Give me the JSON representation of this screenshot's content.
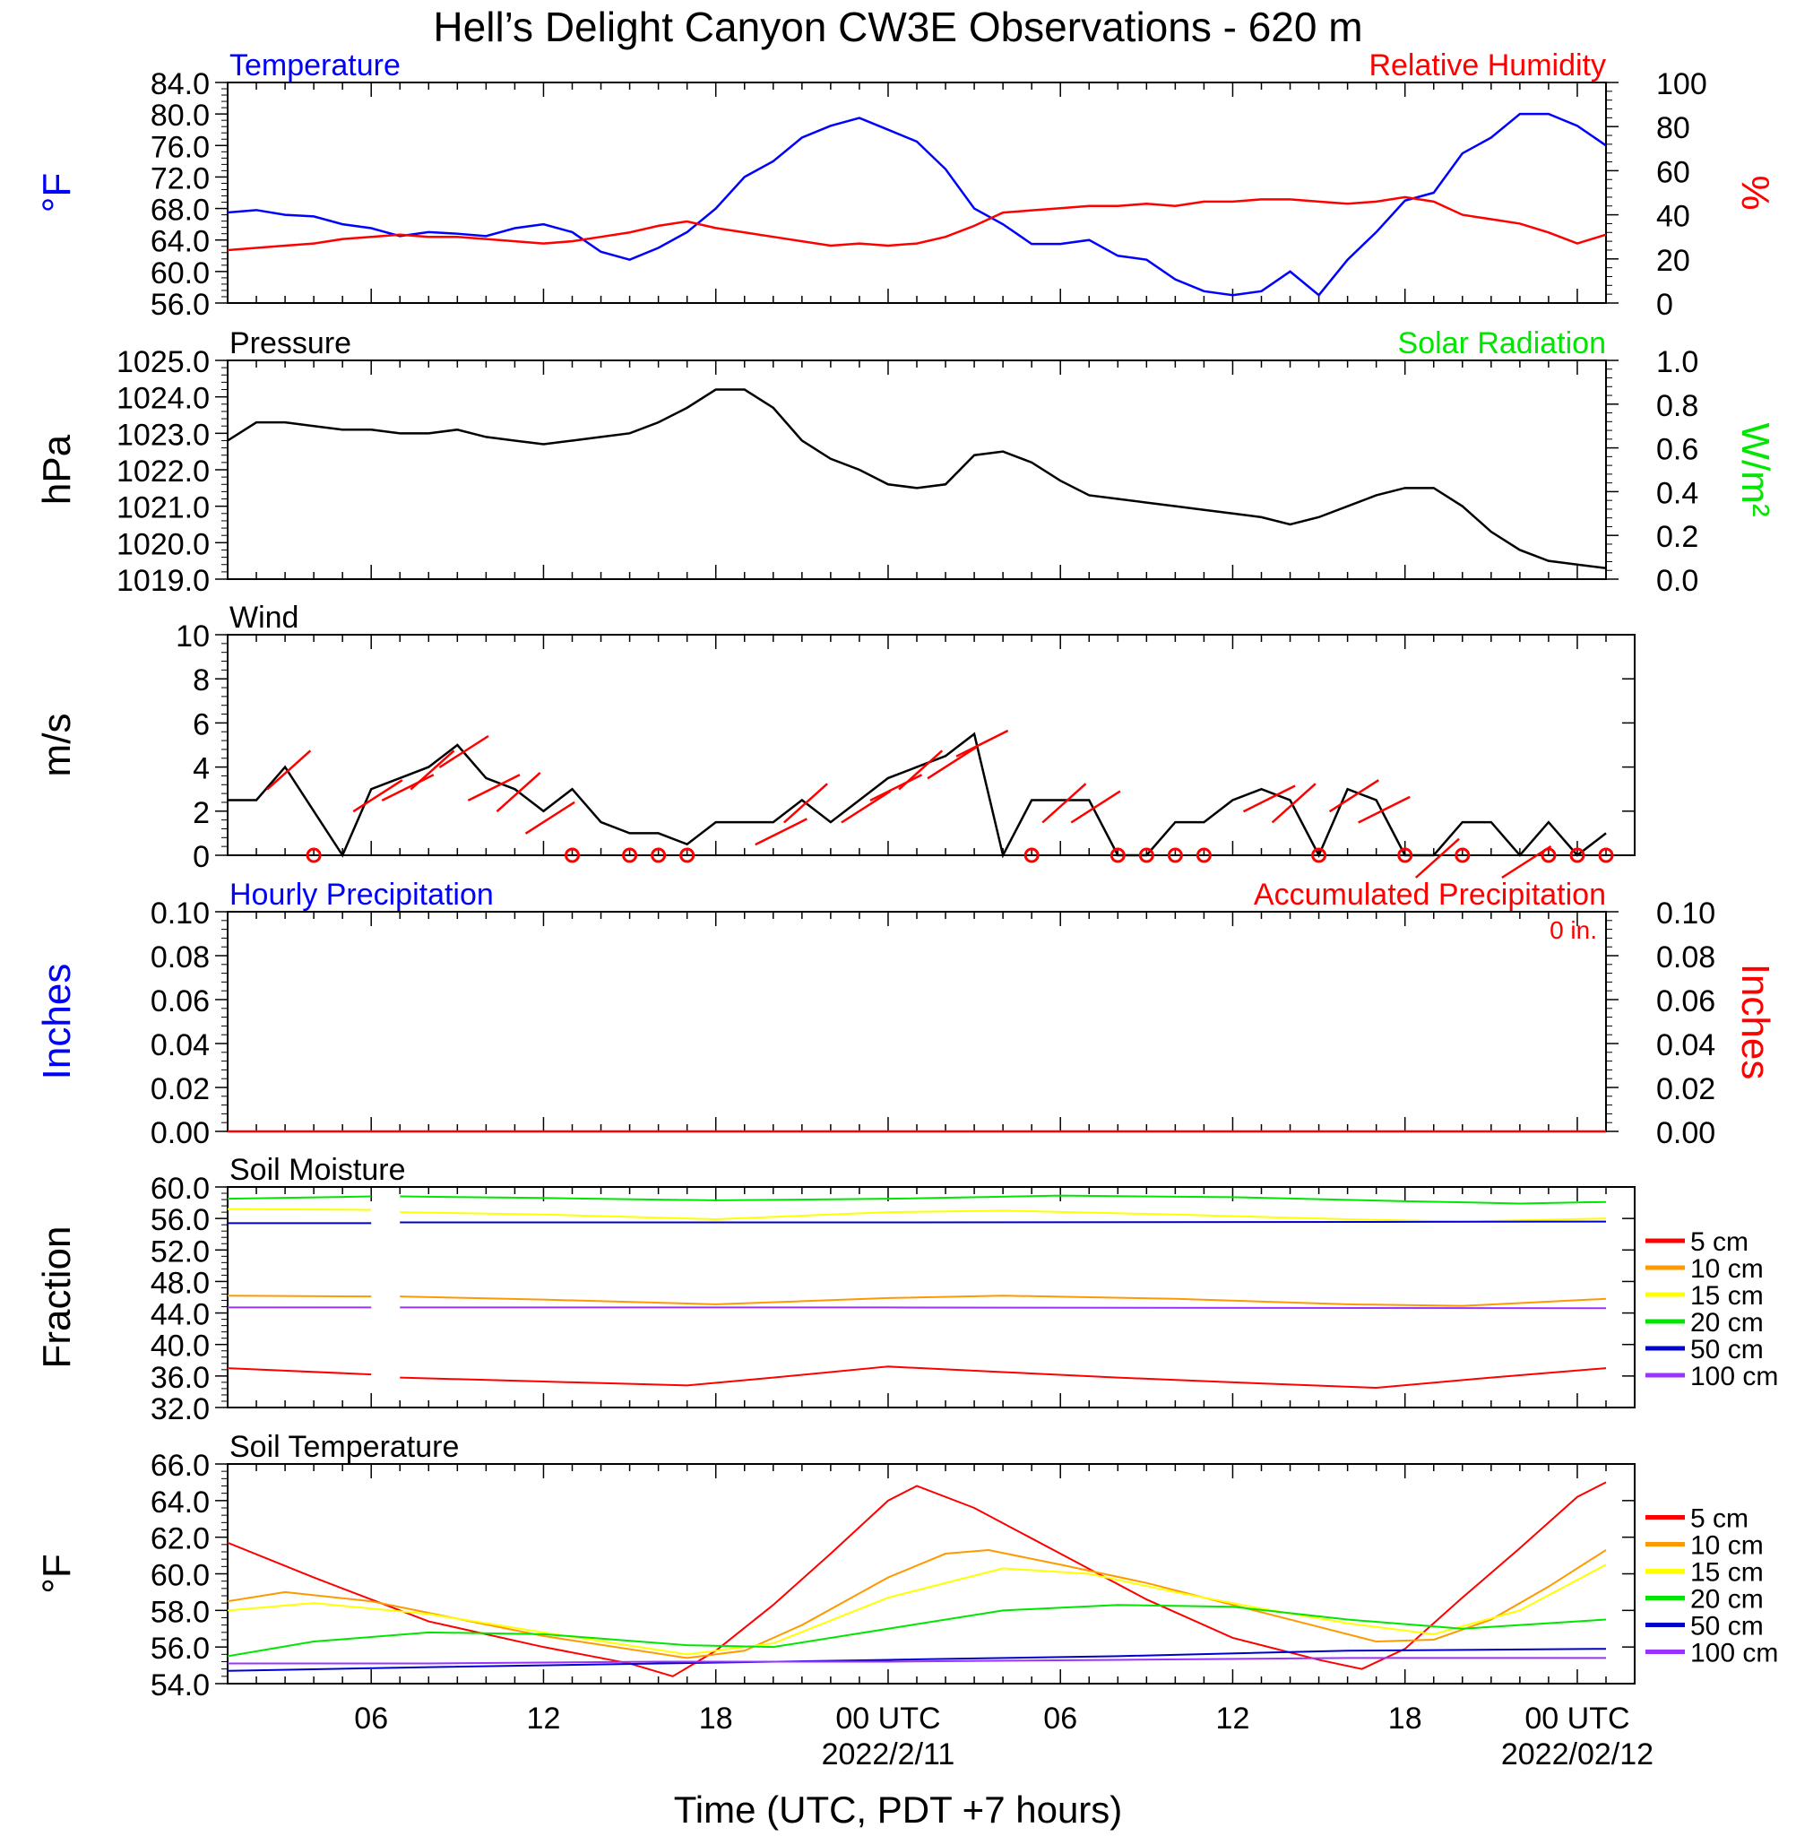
{
  "title": "Hell’s Delight Canyon CW3E Observations - 620 m",
  "xlabel": "Time (UTC, PDT +7 hours)",
  "x_ticks": [
    {
      "t": 6,
      "label": "06"
    },
    {
      "t": 12,
      "label": "12"
    },
    {
      "t": 18,
      "label": "18"
    },
    {
      "t": 24,
      "label": "00 UTC",
      "date": "2022/2/11"
    },
    {
      "t": 30,
      "label": "06"
    },
    {
      "t": 36,
      "label": "12"
    },
    {
      "t": 42,
      "label": "18"
    },
    {
      "t": 48,
      "label": "00 UTC",
      "date": "2022/02/12"
    }
  ],
  "colors": {
    "blue": "#0000ff",
    "red": "#ff0000",
    "green": "#00e600",
    "black": "#000000",
    "orange": "#ff9900",
    "yellow": "#ffff00",
    "purple": "#9933ff"
  },
  "chart_data": [
    {
      "id": "temp-rh",
      "type": "line",
      "title_left": "Temperature",
      "title_right": "Relative Humidity",
      "ylabel_left": "°F",
      "ylabel_right": "%",
      "ylim_left": [
        56,
        84
      ],
      "yticks_left": [
        "56.0",
        "60.0",
        "64.0",
        "68.0",
        "72.0",
        "76.0",
        "80.0",
        "84.0"
      ],
      "ylim_right": [
        0,
        100
      ],
      "yticks_right": [
        "0",
        "20",
        "40",
        "60",
        "80",
        "100"
      ],
      "x_range_hours": [
        1,
        49
      ],
      "series": [
        {
          "name": "Temperature",
          "axis": "left",
          "color": "#0000ff",
          "x": [
            1,
            2,
            3,
            4,
            5,
            6,
            7,
            8,
            9,
            10,
            11,
            12,
            13,
            14,
            15,
            16,
            17,
            18,
            19,
            20,
            21,
            22,
            23,
            24,
            25,
            26,
            27,
            28,
            29,
            30,
            31,
            32,
            33,
            34,
            35,
            36,
            37,
            38,
            39,
            40,
            41,
            42,
            43,
            44,
            45,
            46,
            47,
            48,
            49
          ],
          "y": [
            67.5,
            67.8,
            67.2,
            67.0,
            66.0,
            65.5,
            64.5,
            65.0,
            64.8,
            64.5,
            65.5,
            66.0,
            65.0,
            62.5,
            61.5,
            63.0,
            65.0,
            68.0,
            72.0,
            74.0,
            77.0,
            78.5,
            79.5,
            78.0,
            76.5,
            73.0,
            68.0,
            66.0,
            63.5,
            63.5,
            64.0,
            62.0,
            61.5,
            59.0,
            57.5,
            57.0,
            57.5,
            60.0,
            57.0,
            61.5,
            65.0,
            69.0,
            70.0,
            75.0,
            77.0,
            80.0,
            80.0,
            78.5,
            76.0
          ]
        },
        {
          "name": "Relative Humidity",
          "axis": "right",
          "color": "#ff0000",
          "x": [
            1,
            2,
            3,
            4,
            5,
            6,
            7,
            8,
            9,
            10,
            11,
            12,
            13,
            14,
            15,
            16,
            17,
            18,
            19,
            20,
            21,
            22,
            23,
            24,
            25,
            26,
            27,
            28,
            29,
            30,
            31,
            32,
            33,
            34,
            35,
            36,
            37,
            38,
            39,
            40,
            41,
            42,
            43,
            44,
            45,
            46,
            47,
            48,
            49
          ],
          "y": [
            24,
            25,
            26,
            27,
            29,
            30,
            31,
            30,
            30,
            29,
            28,
            27,
            28,
            30,
            32,
            35,
            37,
            34,
            32,
            30,
            28,
            26,
            27,
            26,
            27,
            30,
            35,
            41,
            42,
            43,
            44,
            44,
            45,
            44,
            46,
            46,
            47,
            47,
            46,
            45,
            46,
            48,
            46,
            40,
            38,
            36,
            32,
            27,
            31
          ]
        }
      ]
    },
    {
      "id": "pressure",
      "type": "line",
      "title_left": "Pressure",
      "title_right": "Solar Radiation",
      "ylabel_left": "hPa",
      "ylabel_right": "W/m²",
      "ylim_left": [
        1019,
        1025
      ],
      "yticks_left": [
        "1019.0",
        "1020.0",
        "1021.0",
        "1022.0",
        "1023.0",
        "1024.0",
        "1025.0"
      ],
      "ylim_right": [
        0,
        1
      ],
      "yticks_right": [
        "0.0",
        "0.2",
        "0.4",
        "0.6",
        "0.8",
        "1.0"
      ],
      "series": [
        {
          "axis": "left",
          "color": "#000000",
          "x": [
            1,
            2,
            3,
            4,
            5,
            6,
            7,
            8,
            9,
            10,
            11,
            12,
            13,
            14,
            15,
            16,
            17,
            18,
            19,
            20,
            21,
            22,
            23,
            24,
            25,
            26,
            27,
            28,
            29,
            30,
            31,
            32,
            33,
            34,
            35,
            36,
            37,
            38,
            39,
            40,
            41,
            42,
            43,
            44,
            45,
            46,
            47,
            48,
            49
          ],
          "y": [
            1022.8,
            1023.3,
            1023.3,
            1023.2,
            1023.1,
            1023.1,
            1023.0,
            1023.0,
            1023.1,
            1022.9,
            1022.8,
            1022.7,
            1022.8,
            1022.9,
            1023.0,
            1023.3,
            1023.7,
            1024.2,
            1024.2,
            1023.7,
            1022.8,
            1022.3,
            1022.0,
            1021.6,
            1021.5,
            1021.6,
            1022.4,
            1022.5,
            1022.2,
            1021.7,
            1021.3,
            1021.2,
            1021.1,
            1021.0,
            1020.9,
            1020.8,
            1020.7,
            1020.5,
            1020.7,
            1021.0,
            1021.3,
            1021.5,
            1021.5,
            1021.0,
            1020.3,
            1019.8,
            1019.5,
            1019.4,
            1019.3
          ]
        }
      ]
    },
    {
      "id": "wind",
      "type": "line",
      "title_left": "Wind",
      "ylabel_left": "m/s",
      "ylim_left": [
        0,
        10
      ],
      "yticks_left": [
        "0",
        "2",
        "4",
        "6",
        "8",
        "10"
      ],
      "series": [
        {
          "axis": "left",
          "color": "#000000",
          "x": [
            1,
            2,
            3,
            4,
            5,
            6,
            7,
            8,
            9,
            10,
            11,
            12,
            13,
            14,
            15,
            16,
            17,
            18,
            19,
            20,
            21,
            22,
            23,
            24,
            25,
            26,
            27,
            28,
            29,
            30,
            31,
            32,
            33,
            34,
            35,
            36,
            37,
            38,
            39,
            40,
            41,
            42,
            43,
            44,
            45,
            46,
            47,
            48,
            49
          ],
          "y": [
            2.5,
            2.5,
            4.0,
            2.0,
            0.0,
            3.0,
            3.5,
            4.0,
            5.0,
            3.5,
            3.0,
            2.0,
            3.0,
            1.5,
            1.0,
            1.0,
            0.5,
            1.5,
            1.5,
            1.5,
            2.5,
            1.5,
            2.5,
            3.5,
            4.0,
            4.5,
            5.5,
            0.0,
            2.5,
            2.5,
            2.5,
            0.0,
            0.0,
            1.5,
            1.5,
            2.5,
            3.0,
            2.5,
            0.0,
            3.0,
            2.5,
            0.0,
            0.0,
            1.5,
            1.5,
            0.0,
            1.5,
            0.0,
            1.0
          ]
        }
      ],
      "calm_hours": [
        4,
        13,
        15,
        16,
        17,
        29,
        32,
        33,
        34,
        35,
        39,
        42,
        44,
        47,
        48,
        49
      ],
      "barb_hours": [
        3,
        6,
        7,
        8,
        9,
        10,
        11,
        12,
        20,
        21,
        23,
        24,
        25,
        26,
        27,
        30,
        31,
        37,
        38,
        40,
        41,
        43,
        46
      ]
    },
    {
      "id": "precip",
      "type": "line",
      "title_left": "Hourly Precipitation",
      "title_right": "Accumulated Precipitation",
      "annotation": "0 in.",
      "ylabel_left": "Inches",
      "ylabel_right": "Inches",
      "ylim_left": [
        0,
        0.1
      ],
      "yticks_left": [
        "0.00",
        "0.02",
        "0.04",
        "0.06",
        "0.08",
        "0.10"
      ],
      "ylim_right": [
        0,
        0.1
      ],
      "yticks_right": [
        "0.00",
        "0.02",
        "0.04",
        "0.06",
        "0.08",
        "0.10"
      ],
      "series": [
        {
          "axis": "left",
          "color": "#ff0000",
          "x": [
            1,
            49
          ],
          "y": [
            0,
            0
          ]
        }
      ]
    },
    {
      "id": "soil-moisture",
      "type": "line",
      "title_left": "Soil Moisture",
      "ylabel_left": "Fraction",
      "ylim_left": [
        32,
        60
      ],
      "yticks_left": [
        "32.0",
        "36.0",
        "40.0",
        "44.0",
        "48.0",
        "52.0",
        "56.0",
        "60.0"
      ],
      "gap_hours": [
        6,
        7
      ],
      "legend": [
        "5 cm",
        "10 cm",
        "15 cm",
        "20 cm",
        "50 cm",
        "100 cm"
      ],
      "series": [
        {
          "name": "5 cm",
          "axis": "left",
          "color": "#ff0000",
          "x": [
            1,
            6,
            7,
            12,
            17,
            20,
            24,
            28,
            32,
            36,
            41,
            45,
            49
          ],
          "y": [
            37.0,
            36.2,
            35.8,
            35.3,
            34.8,
            35.8,
            37.2,
            36.5,
            35.8,
            35.2,
            34.5,
            35.8,
            37.0
          ]
        },
        {
          "name": "10 cm",
          "axis": "left",
          "color": "#ff9900",
          "x": [
            1,
            6,
            7,
            12,
            18,
            24,
            28,
            34,
            40,
            44,
            49
          ],
          "y": [
            46.2,
            46.1,
            46.1,
            45.7,
            45.1,
            45.9,
            46.2,
            45.8,
            45.1,
            44.9,
            45.8
          ]
        },
        {
          "name": "15 cm",
          "axis": "left",
          "color": "#ffff00",
          "x": [
            1,
            6,
            7,
            12,
            18,
            24,
            28,
            34,
            40,
            44,
            49
          ],
          "y": [
            57.2,
            57.1,
            56.8,
            56.5,
            55.9,
            56.8,
            57.0,
            56.5,
            55.9,
            55.6,
            56.0
          ]
        },
        {
          "name": "20 cm",
          "axis": "left",
          "color": "#00e600",
          "x": [
            1,
            6,
            7,
            12,
            18,
            24,
            30,
            36,
            42,
            46,
            49
          ],
          "y": [
            58.5,
            58.8,
            58.8,
            58.6,
            58.3,
            58.5,
            58.9,
            58.7,
            58.2,
            57.9,
            58.1
          ]
        },
        {
          "name": "50 cm",
          "axis": "left",
          "color": "#0000cc",
          "x": [
            1,
            6,
            7,
            24,
            49
          ],
          "y": [
            55.4,
            55.4,
            55.5,
            55.5,
            55.6
          ]
        },
        {
          "name": "100 cm",
          "axis": "left",
          "color": "#9933ff",
          "x": [
            1,
            6,
            7,
            24,
            49
          ],
          "y": [
            44.7,
            44.7,
            44.7,
            44.7,
            44.6
          ]
        }
      ]
    },
    {
      "id": "soil-temp",
      "type": "line",
      "title_left": "Soil Temperature",
      "ylabel_left": "°F",
      "ylim_left": [
        54,
        66
      ],
      "yticks_left": [
        "54.0",
        "56.0",
        "58.0",
        "60.0",
        "62.0",
        "64.0",
        "66.0"
      ],
      "legend": [
        "5 cm",
        "10 cm",
        "15 cm",
        "20 cm",
        "50 cm",
        "100 cm"
      ],
      "series": [
        {
          "name": "5 cm",
          "axis": "left",
          "color": "#ff0000",
          "x": [
            1,
            4,
            8,
            12,
            15,
            16.5,
            18,
            20,
            22,
            24,
            25,
            27,
            30,
            33,
            36,
            39,
            40.5,
            42,
            44,
            46,
            48,
            49
          ],
          "y": [
            61.7,
            59.8,
            57.4,
            56.0,
            55.1,
            54.4,
            55.8,
            58.3,
            61.1,
            64.0,
            64.8,
            63.6,
            61.1,
            58.6,
            56.5,
            55.3,
            54.8,
            55.9,
            58.7,
            61.4,
            64.2,
            65.0
          ]
        },
        {
          "name": "10 cm",
          "axis": "left",
          "color": "#ff9900",
          "x": [
            1,
            3,
            6,
            12,
            17,
            19,
            21,
            24,
            26,
            27.5,
            30,
            33,
            36,
            39,
            41,
            43,
            45,
            47,
            49
          ],
          "y": [
            58.5,
            59.0,
            58.5,
            56.6,
            55.4,
            55.8,
            57.2,
            59.8,
            61.1,
            61.3,
            60.5,
            59.5,
            58.3,
            57.1,
            56.3,
            56.4,
            57.5,
            59.3,
            61.3
          ]
        },
        {
          "name": "15 cm",
          "axis": "left",
          "color": "#ffff00",
          "x": [
            1,
            4,
            8,
            12,
            17,
            20,
            24,
            28,
            31,
            34,
            37,
            40,
            43,
            46,
            49
          ],
          "y": [
            58.0,
            58.4,
            57.8,
            56.8,
            55.6,
            56.2,
            58.7,
            60.3,
            60.0,
            59.0,
            58.1,
            57.3,
            56.7,
            58.0,
            60.5
          ]
        },
        {
          "name": "20 cm",
          "axis": "left",
          "color": "#00e600",
          "x": [
            1,
            4,
            8,
            12,
            17,
            20,
            24,
            28,
            32,
            36,
            40,
            44,
            49
          ],
          "y": [
            55.5,
            56.3,
            56.8,
            56.7,
            56.1,
            56.0,
            57.0,
            58.0,
            58.3,
            58.2,
            57.5,
            57.0,
            57.5
          ]
        },
        {
          "name": "50 cm",
          "axis": "left",
          "color": "#0000cc",
          "x": [
            1,
            8,
            16,
            24,
            32,
            40,
            49
          ],
          "y": [
            54.7,
            54.9,
            55.1,
            55.3,
            55.5,
            55.8,
            55.9
          ]
        },
        {
          "name": "100 cm",
          "axis": "left",
          "color": "#9933ff",
          "x": [
            1,
            8,
            16,
            24,
            32,
            40,
            49
          ],
          "y": [
            55.1,
            55.1,
            55.2,
            55.2,
            55.3,
            55.4,
            55.4
          ]
        }
      ]
    }
  ]
}
